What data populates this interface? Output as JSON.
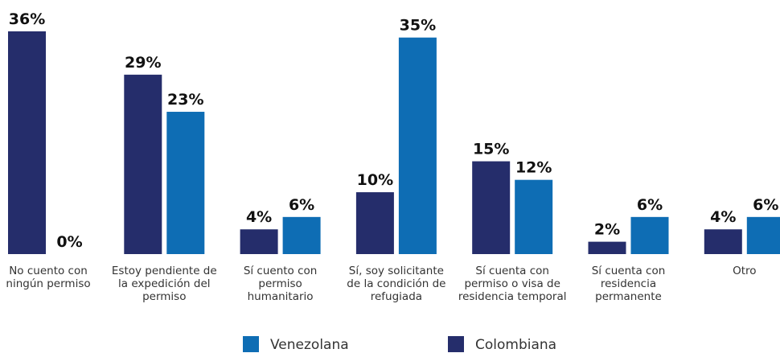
{
  "chart_data": {
    "type": "bar",
    "categories": [
      "No cuento con ningún permiso",
      "Estoy pendiente de la expedición del permiso",
      "Sí cuento con permiso humanitario",
      "Sí, soy solicitante de la condición de refugiada",
      "Sí cuenta con permiso o visa de residencia temporal",
      "Sí cuenta con residencia permanente",
      "Otro"
    ],
    "series": [
      {
        "name": "Colombiana",
        "color": "#252d6b",
        "values": [
          36,
          29,
          4,
          10,
          15,
          2,
          4
        ],
        "value_labels": [
          "36%",
          "29%",
          "4%",
          "10%",
          "15%",
          "2%",
          "4%"
        ]
      },
      {
        "name": "Venezolana",
        "color": "#0e6db4",
        "values": [
          0,
          23,
          6,
          35,
          12,
          6,
          6
        ],
        "value_labels": [
          "0%",
          "23%",
          "6%",
          "35%",
          "12%",
          "6%",
          "6%"
        ]
      }
    ],
    "ylim": [
      0,
      36
    ],
    "legend": "bottom"
  }
}
